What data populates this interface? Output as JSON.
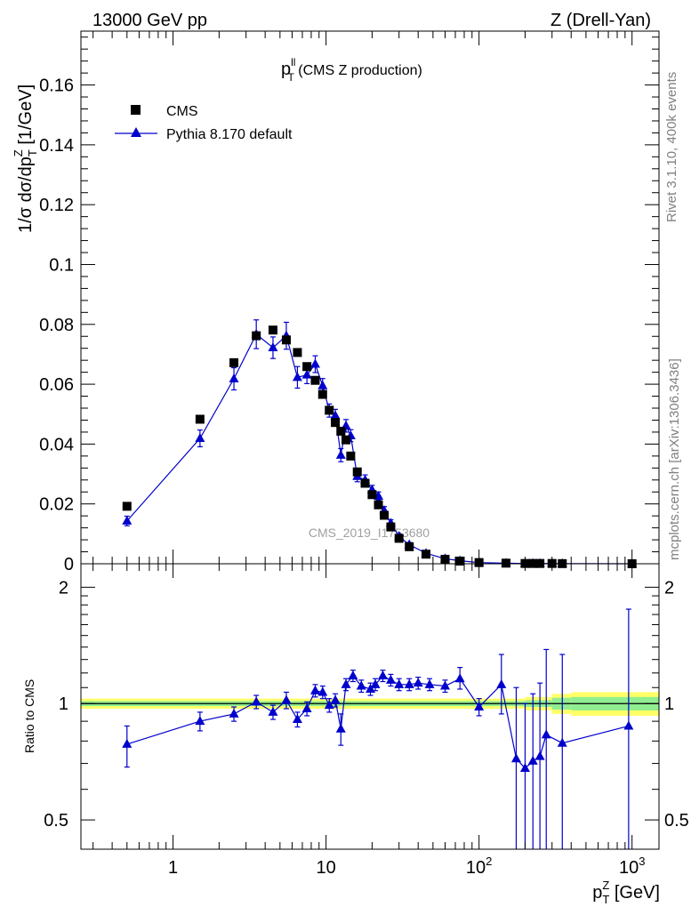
{
  "header": {
    "left": "13000 GeV pp",
    "right": "Z (Drell-Yan)"
  },
  "sidebar": {
    "rivet": "Rivet 3.1.10,  400k events",
    "mcplots": "mcplots.cern.ch [arXiv:1306.3436]"
  },
  "watermark": "CMS_2019_I1753680",
  "chart_data": {
    "type": "scatter",
    "title": {
      "main": "p",
      "sup": "ll",
      "sub": "T",
      "rest": " (CMS Z production)"
    },
    "xscale": "log",
    "xlim": [
      0.25,
      1500
    ],
    "x_ticks": [
      {
        "value": 1,
        "label": "1"
      },
      {
        "value": 10,
        "label": "10"
      },
      {
        "value": 100,
        "label": "10",
        "exp": "2"
      },
      {
        "value": 1000,
        "label": "10",
        "exp": "3"
      }
    ],
    "xlabel": {
      "main": "p",
      "sub": "T",
      "sup": "Z",
      "rest": " [GeV]"
    },
    "top_panel": {
      "ylabel": {
        "pre": "1/σ dσ/dp",
        "sub": "T",
        "sup": "Z",
        "rest": " [1/GeV]"
      },
      "ylim": [
        0,
        0.178
      ],
      "y_ticks": [
        {
          "value": 0,
          "label": "0"
        },
        {
          "value": 0.02,
          "label": "0.02"
        },
        {
          "value": 0.04,
          "label": "0.04"
        },
        {
          "value": 0.06,
          "label": "0.06"
        },
        {
          "value": 0.08,
          "label": "0.08"
        },
        {
          "value": 0.1,
          "label": "0.1"
        },
        {
          "value": 0.12,
          "label": "0.12"
        },
        {
          "value": 0.14,
          "label": "0.14"
        },
        {
          "value": 0.16,
          "label": "0.16"
        }
      ],
      "legend_position": "top-left",
      "series": [
        {
          "name": "CMS",
          "marker": "square",
          "color": "#000000",
          "x": [
            0.5,
            1.5,
            2.5,
            3.5,
            4.5,
            5.5,
            6.5,
            7.5,
            8.5,
            9.5,
            10.5,
            11.5,
            12.5,
            13.5,
            14.5,
            16,
            18,
            20,
            22,
            24,
            26.5,
            30,
            35,
            45,
            60,
            75,
            100,
            150,
            200,
            225,
            250,
            300,
            350,
            1000
          ],
          "y": [
            0.0192,
            0.0483,
            0.0672,
            0.0762,
            0.0781,
            0.0748,
            0.0706,
            0.0659,
            0.0613,
            0.0566,
            0.0513,
            0.0472,
            0.0443,
            0.0414,
            0.036,
            0.0307,
            0.0269,
            0.0231,
            0.0197,
            0.0162,
            0.0123,
            0.0085,
            0.0057,
            0.0032,
            0.0015,
            0.0009,
            0.0004,
            0.0002,
            0.0001,
            0.0001,
            0.0001,
            0.0001,
            5e-05,
            1e-05
          ]
        },
        {
          "name": "Pythia 8.170 default",
          "marker": "triangle",
          "color": "#0000cc",
          "x": [
            0.5,
            1.5,
            2.5,
            3.5,
            4.5,
            5.5,
            6.5,
            7.5,
            8.5,
            9.5,
            10.5,
            11.5,
            12.5,
            13.5,
            14.5,
            16,
            18,
            20,
            22,
            24,
            26.5,
            30,
            35,
            45,
            60,
            75,
            100,
            150,
            200,
            225,
            250,
            300,
            350,
            1000
          ],
          "y": [
            0.0143,
            0.0419,
            0.0618,
            0.0767,
            0.0722,
            0.0762,
            0.0623,
            0.0631,
            0.0667,
            0.0595,
            0.0512,
            0.0495,
            0.0363,
            0.0461,
            0.0428,
            0.0292,
            0.028,
            0.0247,
            0.0226,
            0.0178,
            0.0136,
            0.0091,
            0.0064,
            0.0035,
            0.0017,
            0.001,
            0.0004,
            0.0002,
            0.0001,
            0.0001,
            0.0001,
            0.0001,
            5e-05,
            1e-05
          ],
          "err": [
            0.0016,
            0.0028,
            0.0037,
            0.0048,
            0.0036,
            0.0045,
            0.0036,
            0.0029,
            0.0028,
            0.0024,
            0.0022,
            0.0021,
            0.0022,
            0.0021,
            0.002,
            0.0018,
            0.0017,
            0.0015,
            0.0014,
            0.0013,
            0.0011,
            0.0009,
            0.0007,
            0.0005,
            0.0004,
            0.0003,
            0.0002,
            0.0001,
            0.0001,
            0.0001,
            0.0001,
            0.0001,
            5e-05,
            1e-05
          ]
        }
      ]
    },
    "ratio_panel": {
      "ylabel": "Ratio to CMS",
      "yscale": "log",
      "ylim": [
        0.42,
        2.3
      ],
      "y_ticks": [
        {
          "value": 0.5,
          "label": "0.5"
        },
        {
          "value": 1,
          "label": "1"
        },
        {
          "value": 2,
          "label": "2"
        }
      ],
      "reference_line": 1,
      "band_colors": {
        "outer": "#ffff66",
        "inner": "#90ee90"
      },
      "uncertainty_band": {
        "x_edges": [
          0.25,
          200,
          300,
          400,
          600,
          1500
        ],
        "outer_halfwidth": [
          0.03,
          0.04,
          0.06,
          0.07,
          0.07,
          0.07
        ],
        "inner_halfwidth": [
          0.015,
          0.02,
          0.035,
          0.04,
          0.04,
          0.04
        ]
      },
      "series": [
        {
          "name": "Pythia 8.170 default",
          "color": "#0000cc",
          "x": [
            0.5,
            1.5,
            2.5,
            3.5,
            4.5,
            5.5,
            6.5,
            7.5,
            8.5,
            9.5,
            10.5,
            11.5,
            12.5,
            13.5,
            15,
            17,
            19.5,
            21,
            23.5,
            26.5,
            30,
            35,
            40,
            47.5,
            60,
            75,
            100,
            140,
            175,
            200,
            225,
            250,
            275,
            350,
            950
          ],
          "y": [
            0.785,
            0.9,
            0.94,
            1.01,
            0.95,
            1.02,
            0.91,
            0.97,
            1.08,
            1.07,
            0.99,
            1.02,
            0.86,
            1.12,
            1.18,
            1.11,
            1.09,
            1.12,
            1.18,
            1.15,
            1.12,
            1.12,
            1.13,
            1.12,
            1.11,
            1.16,
            0.98,
            1.12,
            0.72,
            0.68,
            0.71,
            0.73,
            0.83,
            0.79,
            0.875
          ],
          "err_lo": [
            0.1,
            0.05,
            0.04,
            0.04,
            0.04,
            0.05,
            0.04,
            0.04,
            0.04,
            0.04,
            0.04,
            0.04,
            0.08,
            0.04,
            0.04,
            0.04,
            0.04,
            0.04,
            0.04,
            0.04,
            0.04,
            0.04,
            0.04,
            0.04,
            0.04,
            0.07,
            0.05,
            0.18,
            0.32,
            0.32,
            0.35,
            0.35,
            0.44,
            0.45,
            0.48
          ],
          "err_hi": [
            0.09,
            0.05,
            0.04,
            0.04,
            0.04,
            0.05,
            0.04,
            0.04,
            0.04,
            0.04,
            0.04,
            0.04,
            0.08,
            0.04,
            0.04,
            0.04,
            0.04,
            0.04,
            0.04,
            0.04,
            0.04,
            0.04,
            0.04,
            0.04,
            0.04,
            0.08,
            0.05,
            0.22,
            0.38,
            0.32,
            0.35,
            0.4,
            0.55,
            0.55,
            0.88
          ]
        }
      ]
    }
  }
}
